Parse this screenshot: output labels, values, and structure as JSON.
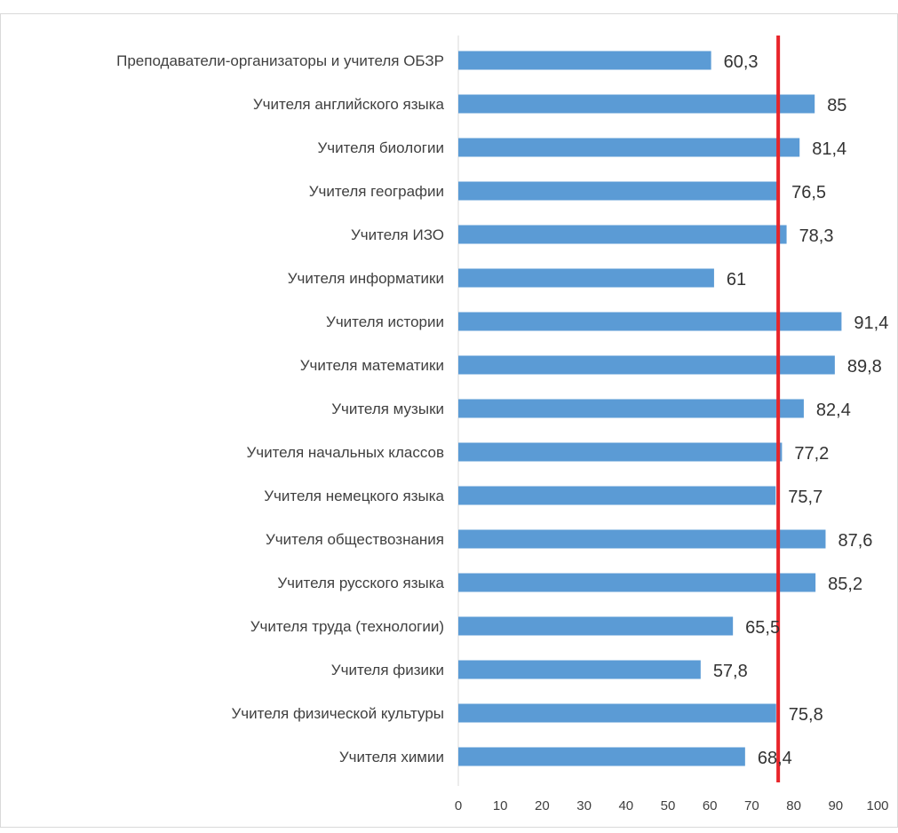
{
  "chart_data": {
    "type": "bar",
    "orientation": "horizontal",
    "categories": [
      "Преподаватели-организаторы и учителя ОБЗР",
      "Учителя английского языка",
      "Учителя биологии",
      "Учителя географии",
      "Учителя ИЗО",
      "Учителя информатики",
      "Учителя истории",
      "Учителя математики",
      "Учителя музыки",
      "Учителя начальных классов",
      "Учителя немецкого языка",
      "Учителя обществознания",
      "Учителя русского языка",
      "Учителя труда (технологии)",
      "Учителя физики",
      "Учителя физической культуры",
      "Учителя химии"
    ],
    "values": [
      60.3,
      85,
      81.4,
      76.5,
      78.3,
      61,
      91.4,
      89.8,
      82.4,
      77.2,
      75.7,
      87.6,
      85.2,
      65.5,
      57.8,
      75.8,
      68.4
    ],
    "value_labels": [
      "60,3",
      "85",
      "81,4",
      "76,5",
      "78,3",
      "61",
      "91,4",
      "89,8",
      "82,4",
      "77,2",
      "75,7",
      "87,6",
      "85,2",
      "65,5",
      "57,8",
      "75,8",
      "68,4"
    ],
    "x_ticks": [
      0,
      10,
      20,
      30,
      40,
      50,
      60,
      70,
      80,
      90,
      100
    ],
    "x_tick_labels": [
      "0",
      "10",
      "20",
      "30",
      "40",
      "50",
      "60",
      "70",
      "80",
      "90",
      "100"
    ],
    "xlim": [
      0,
      100
    ],
    "reference_line": {
      "value": 76.3,
      "color": "#e8242a"
    },
    "grid": true,
    "legend": "none",
    "title": "",
    "xlabel": "",
    "ylabel": "",
    "colors": {
      "bar": "#5b9bd5",
      "grid": "#d9d9d9",
      "text": "#404040",
      "value_text": "#333333"
    }
  }
}
